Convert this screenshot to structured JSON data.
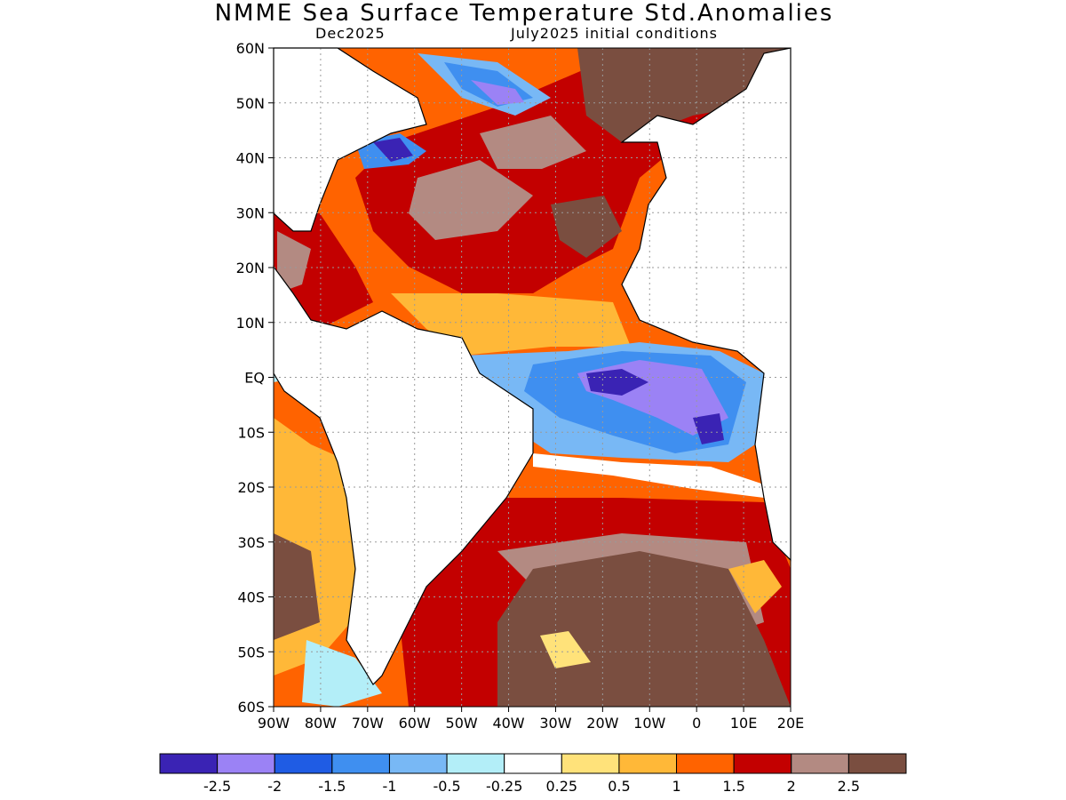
{
  "title": "NMME Sea Surface Temperature Std.Anomalies",
  "valid_time": "Dec2025",
  "init": "July2025 initial conditions",
  "lat_labels": [
    "60N",
    "50N",
    "40N",
    "30N",
    "20N",
    "10N",
    "EQ",
    "10S",
    "20S",
    "30S",
    "40S",
    "50S",
    "60S"
  ],
  "lon_labels": [
    "90W",
    "80W",
    "70W",
    "60W",
    "50W",
    "40W",
    "30W",
    "20W",
    "10W",
    "0",
    "10E",
    "20E"
  ],
  "colorbar": {
    "colors": [
      "#3a23b4",
      "#9b82f5",
      "#1f5ce4",
      "#3f8ff0",
      "#78b8f5",
      "#b3eef8",
      "#ffffff",
      "#ffe27a",
      "#ffb838",
      "#ff6300",
      "#c30000",
      "#b38a82",
      "#7a4e40"
    ],
    "labels": [
      "-2.5",
      "-2",
      "-1.5",
      "-1",
      "-0.5",
      "-0.25",
      "0.25",
      "0.5",
      "1",
      "1.5",
      "2",
      "2.5"
    ]
  },
  "colors": {
    "land": "#ffffff",
    "coast": "#000000",
    "grid": "#9a9a9a"
  }
}
